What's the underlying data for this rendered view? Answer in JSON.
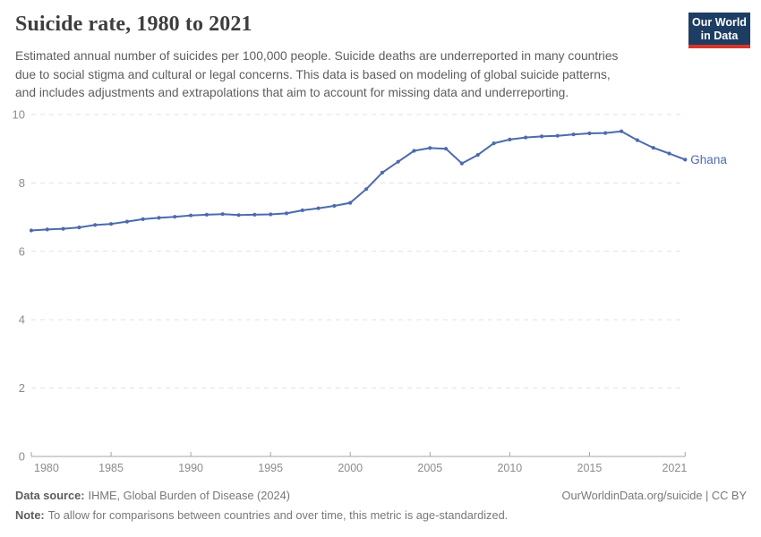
{
  "header": {
    "title": "Suicide rate, 1980 to 2021",
    "subtitle_lines": [
      "Estimated annual number of suicides per 100,000 people. Suicide deaths are underreported in many countries",
      "due to social stigma and cultural or legal concerns. This data is based on modeling of global suicide patterns,",
      "and includes adjustments and extrapolations that aim to account for missing data and underreporting."
    ],
    "logo": {
      "line1": "Our World",
      "line2": "in Data"
    }
  },
  "chart_data": {
    "type": "line",
    "title": "Suicide rate, 1980 to 2021",
    "xlabel": "",
    "ylabel": "Suicides per 100,000 people",
    "ylim": [
      0,
      10
    ],
    "yticks": [
      0,
      2,
      4,
      6,
      8,
      10
    ],
    "xticks": [
      1980,
      1985,
      1990,
      1995,
      2000,
      2005,
      2010,
      2015,
      2021
    ],
    "grid": "horizontal-dashed",
    "legend_position": "end-of-line-label",
    "x": [
      1980,
      1981,
      1982,
      1983,
      1984,
      1985,
      1986,
      1987,
      1988,
      1989,
      1990,
      1991,
      1992,
      1993,
      1994,
      1995,
      1996,
      1997,
      1998,
      1999,
      2000,
      2001,
      2002,
      2003,
      2004,
      2005,
      2006,
      2007,
      2008,
      2009,
      2010,
      2011,
      2012,
      2013,
      2014,
      2015,
      2016,
      2017,
      2018,
      2019,
      2020,
      2021
    ],
    "series": [
      {
        "name": "Ghana",
        "values": [
          6.61,
          6.64,
          6.66,
          6.7,
          6.77,
          6.8,
          6.87,
          6.94,
          6.98,
          7.01,
          7.05,
          7.07,
          7.09,
          7.06,
          7.07,
          7.08,
          7.11,
          7.2,
          7.26,
          7.33,
          7.42,
          7.82,
          8.3,
          8.62,
          8.94,
          9.02,
          9.0,
          8.57,
          8.82,
          9.16,
          9.27,
          9.33,
          9.36,
          9.38,
          9.42,
          9.45,
          9.46,
          9.51,
          9.25,
          9.03,
          8.86,
          8.68
        ]
      }
    ]
  },
  "colors": {
    "line": "#4c6bac",
    "series_label": "#4c6bac",
    "logo_bg": "#1d3d63",
    "logo_stripe": "#d7352c",
    "grid": "#e1e1e1",
    "axis": "#a5a5a5",
    "tick_text": "#8c8c8c"
  },
  "footer": {
    "source_label": "Data source:",
    "source_value": "IHME, Global Burden of Disease (2024)",
    "note_label": "Note:",
    "note_value": "To allow for comparisons between countries and over time, this metric is age-standardized.",
    "credit": "OurWorldinData.org/suicide | CC BY"
  }
}
